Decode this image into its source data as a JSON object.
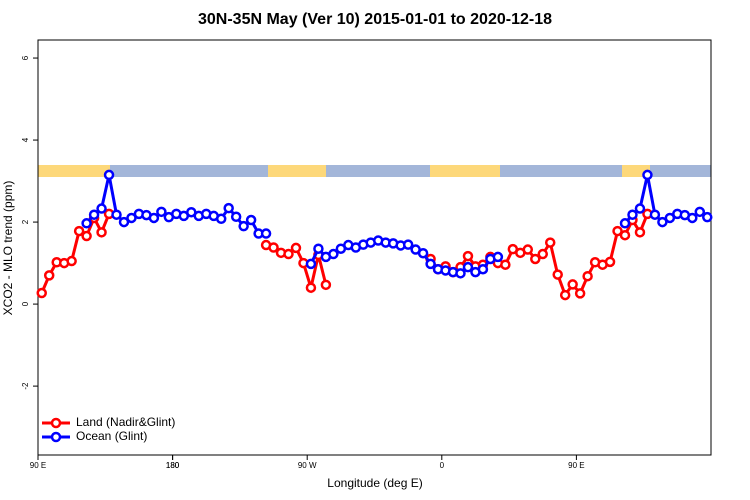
{
  "chart_data": {
    "type": "line",
    "title": "30N-35N May (Ver 10)   2015-01-01 to 2020-12-18",
    "xlabel": "Longitude (deg E)",
    "ylabel": "XCO2 - MLO trend (ppm)",
    "x": [
      92.5,
      97.5,
      102.5,
      107.5,
      112.5,
      117.5,
      122.5,
      127.5,
      132.5,
      137.5,
      142.5,
      147.5,
      152.5,
      157.5,
      162.5,
      167.5,
      172.5,
      177.5,
      182.5,
      187.5,
      192.5,
      197.5,
      202.5,
      207.5,
      212.5,
      217.5,
      222.5,
      227.5,
      232.5,
      237.5,
      242.5,
      247.5,
      252.5,
      257.5,
      262.5,
      267.5,
      272.5,
      277.5,
      282.5,
      287.5,
      292.5,
      297.5,
      302.5,
      307.5,
      312.5,
      317.5,
      322.5,
      327.5,
      332.5,
      337.5,
      342.5,
      347.5,
      352.5,
      357.5,
      362.5,
      367.5,
      372.5,
      377.5,
      382.5,
      387.5,
      392.5,
      397.5,
      402.5,
      407.5,
      412.5,
      417.5,
      422.5,
      427.5,
      432.5,
      437.5,
      442.5,
      447.5,
      452.5,
      457.5,
      462.5,
      467.5,
      472.5,
      477.5,
      482.5,
      487.5,
      492.5,
      497.5,
      502.5,
      507.5,
      512.5,
      517.5,
      522.5,
      527.5,
      532.5,
      537.5
    ],
    "series": [
      {
        "name": "Land (Nadir&Glint)",
        "color": "#ff0000",
        "values": [
          0.27,
          0.7,
          1.02,
          1.0,
          1.05,
          1.78,
          1.66,
          2.1,
          1.75,
          2.2,
          null,
          null,
          null,
          null,
          null,
          null,
          null,
          null,
          null,
          null,
          null,
          null,
          null,
          null,
          null,
          null,
          null,
          null,
          null,
          null,
          1.44,
          1.38,
          1.25,
          1.22,
          1.37,
          1.0,
          0.4,
          1.2,
          0.47,
          null,
          null,
          null,
          null,
          null,
          null,
          null,
          null,
          null,
          null,
          null,
          null,
          null,
          1.1,
          0.85,
          0.92,
          0.78,
          0.9,
          1.17,
          0.92,
          0.96,
          1.15,
          1.0,
          0.96,
          1.34,
          1.25,
          1.33,
          1.1,
          1.22,
          1.5,
          0.72,
          0.22,
          0.48,
          0.26,
          0.68,
          1.02,
          0.96,
          1.03,
          1.78,
          1.68,
          2.05,
          1.75,
          2.2,
          null,
          null,
          null,
          null,
          null,
          null,
          null,
          null
        ]
      },
      {
        "name": "Ocean (Glint)",
        "color": "#0000ff",
        "values": [
          null,
          null,
          null,
          null,
          null,
          null,
          1.97,
          2.18,
          2.33,
          3.15,
          2.18,
          2.0,
          2.1,
          2.2,
          2.17,
          2.1,
          2.25,
          2.12,
          2.2,
          2.15,
          2.24,
          2.15,
          2.2,
          2.15,
          2.08,
          2.34,
          2.13,
          1.9,
          2.05,
          1.72,
          1.72,
          null,
          null,
          null,
          null,
          null,
          0.98,
          1.35,
          1.15,
          1.22,
          1.35,
          1.44,
          1.38,
          1.45,
          1.5,
          1.55,
          1.5,
          1.48,
          1.43,
          1.45,
          1.33,
          1.24,
          0.98,
          0.85,
          0.82,
          0.78,
          0.75,
          0.9,
          0.78,
          0.85,
          1.1,
          1.15,
          null,
          null,
          null,
          null,
          null,
          null,
          null,
          null,
          null,
          null,
          null,
          null,
          null,
          null,
          null,
          null,
          1.97,
          2.18,
          2.33,
          3.15,
          2.18,
          2.0,
          2.1,
          2.2,
          2.17,
          2.1,
          2.25,
          2.12
        ]
      }
    ],
    "xlim": [
      90,
      540
    ],
    "xticks": [
      {
        "value": 90,
        "label": "90 E"
      },
      180,
      {
        "value": 270,
        "label": "90 W"
      },
      {
        "value": 360,
        "label": "0"
      },
      {
        "value": 450,
        "label": "90 E"
      },
      180.0001
    ],
    "ylim": [
      -3.68,
      6.44
    ],
    "yticks": [
      -2,
      0,
      2,
      4,
      6
    ],
    "legend": "bottom-left"
  }
}
